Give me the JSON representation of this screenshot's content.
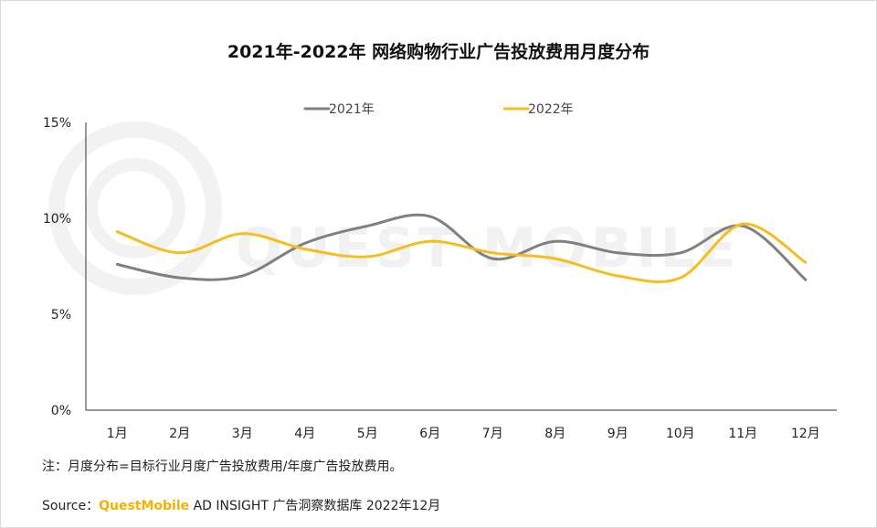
{
  "title": "2021年-2022年 网络购物行业广告投放费用月度分布",
  "watermark": "QUEST MOBILE",
  "note": "注：月度分布=目标行业月度广告投放费用/年度广告投放费用。",
  "source": {
    "label": "Source：",
    "brand": "QuestMobile",
    "text": " AD INSIGHT 广告洞察数据库 2022年12月"
  },
  "chart_data": {
    "type": "line",
    "title": "2021年-2022年 网络购物行业广告投放费用月度分布",
    "categories": [
      "1月",
      "2月",
      "3月",
      "4月",
      "5月",
      "6月",
      "7月",
      "8月",
      "9月",
      "10月",
      "11月",
      "12月"
    ],
    "y_ticks": [
      "0%",
      "5%",
      "10%",
      "15%"
    ],
    "ylim": [
      0,
      15
    ],
    "grid": false,
    "legend_position": "top",
    "series": [
      {
        "name": "2021年",
        "color": "#808080",
        "values": [
          7.6,
          6.9,
          7.0,
          8.7,
          9.6,
          10.1,
          7.9,
          8.8,
          8.2,
          8.2,
          9.6,
          6.8
        ]
      },
      {
        "name": "2022年",
        "color": "#f5bd1f",
        "values": [
          9.3,
          8.2,
          9.2,
          8.4,
          8.0,
          8.8,
          8.2,
          7.9,
          7.0,
          6.9,
          9.7,
          7.7
        ]
      }
    ]
  }
}
